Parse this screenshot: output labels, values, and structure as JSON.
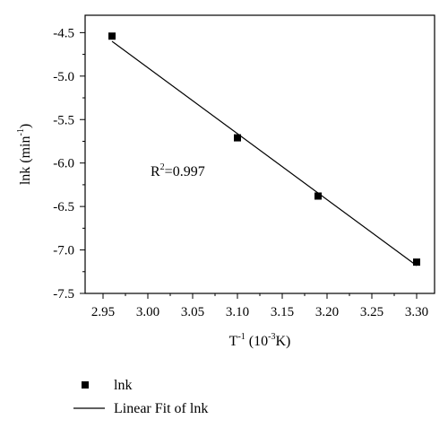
{
  "chart_data": {
    "type": "scatter",
    "xlabel": {
      "base": "T",
      "sup": "-1",
      "unit_open": " (10",
      "unit_sup": "-3",
      "unit_close": "K)"
    },
    "ylabel": {
      "base": "lnk (min",
      "sup": "-1",
      "close": ")"
    },
    "xlim": [
      2.93,
      3.32
    ],
    "ylim": [
      -7.5,
      -4.3
    ],
    "xticks": [
      2.95,
      3.0,
      3.05,
      3.1,
      3.15,
      3.2,
      3.25,
      3.3
    ],
    "xtick_labels": [
      "2.95",
      "3.00",
      "3.05",
      "3.10",
      "3.15",
      "3.20",
      "3.25",
      "3.30"
    ],
    "yticks": [
      -7.5,
      -7.0,
      -6.5,
      -6.0,
      -5.5,
      -5.0,
      -4.5
    ],
    "ytick_labels": [
      "-7.5",
      "-7.0",
      "-6.5",
      "-6.0",
      "-5.5",
      "-5.0",
      "-4.5"
    ],
    "series": [
      {
        "name": "lnk",
        "kind": "scatter",
        "marker": "square",
        "x": [
          2.96,
          3.1,
          3.19,
          3.3
        ],
        "y": [
          -4.54,
          -5.71,
          -6.38,
          -7.14
        ]
      },
      {
        "name": "Linear Fit of lnk",
        "kind": "line",
        "x": [
          2.96,
          3.3
        ],
        "y": [
          -4.6,
          -7.18
        ]
      }
    ],
    "annotation": {
      "base": "R",
      "sup": "2",
      "rest": "=0.997",
      "at_x": 3.003,
      "at_y": -6.15
    },
    "legend_position": "bottom-left",
    "grid": false
  }
}
